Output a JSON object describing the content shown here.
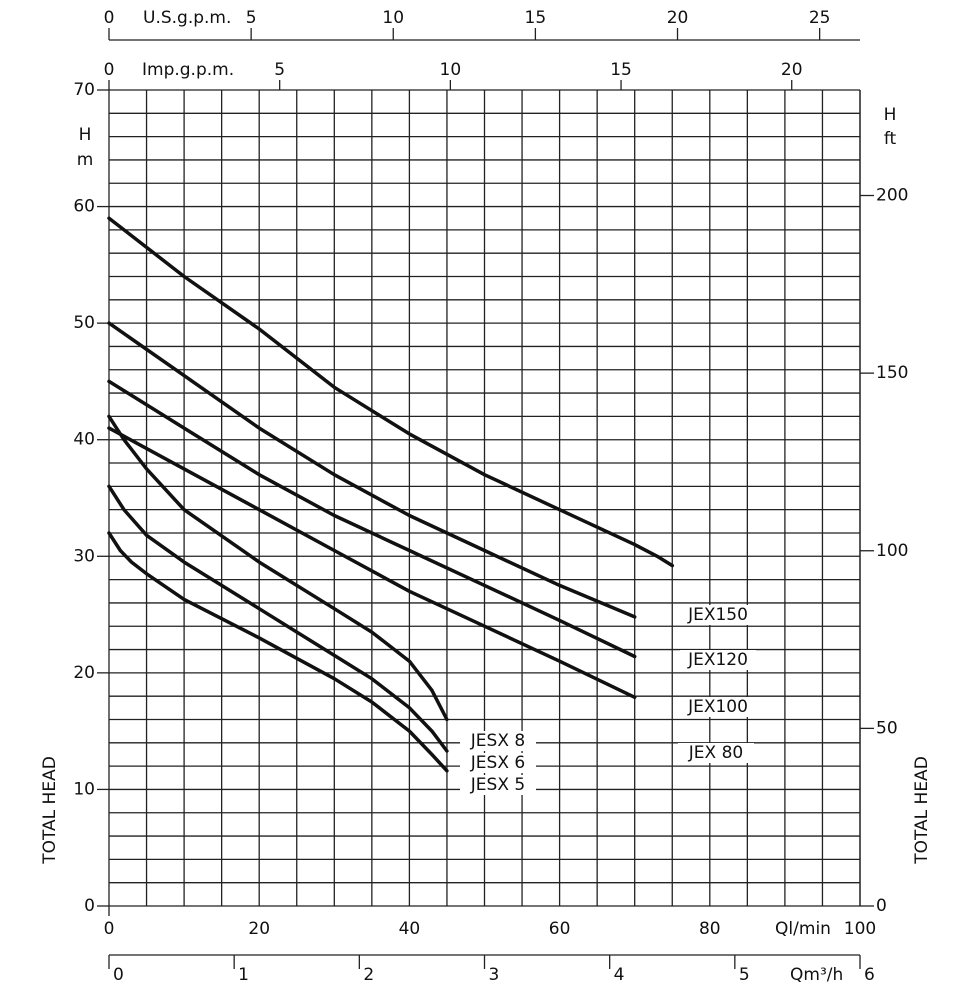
{
  "chart_data": {
    "type": "line",
    "xlabel": "Ql/min",
    "xlim": [
      0,
      100
    ],
    "xticks": [
      0,
      20,
      40,
      60,
      80,
      100
    ],
    "xgrid": [
      5,
      10,
      15,
      20,
      25,
      30,
      35,
      40,
      45,
      50,
      55,
      60,
      65,
      70,
      75,
      80,
      85,
      90,
      95,
      100
    ],
    "ylabel": "TOTAL HEAD",
    "yunit": [
      "H",
      "m"
    ],
    "ylim": [
      0,
      70
    ],
    "yticks": [
      0,
      10,
      20,
      30,
      40,
      50,
      60,
      70
    ],
    "ygrid": [
      2,
      4,
      6,
      8,
      10,
      12,
      14,
      16,
      18,
      20,
      22,
      24,
      26,
      28,
      30,
      32,
      34,
      36,
      38,
      40,
      42,
      44,
      46,
      48,
      50,
      52,
      54,
      56,
      58,
      60,
      62,
      64,
      66,
      68,
      70
    ],
    "y2label": "TOTAL HEAD",
    "y2unit": [
      "H",
      "ft"
    ],
    "y2lim": [
      0,
      229.7
    ],
    "y2ticks": [
      0,
      50,
      100,
      150,
      200
    ],
    "x_axes": [
      {
        "label": "U.S.g.p.m.",
        "lim": [
          0,
          26.42
        ],
        "ticks": [
          0,
          5,
          10,
          15,
          20,
          25
        ]
      },
      {
        "label": "Imp.g.p.m.",
        "lim": [
          0,
          22
        ],
        "ticks": [
          0,
          5,
          10,
          15,
          20
        ]
      },
      {
        "label": "Qm³/h",
        "lim": [
          0,
          6
        ],
        "ticks": [
          0,
          1,
          2,
          3,
          4,
          5,
          6
        ]
      }
    ],
    "series": [
      {
        "name": "JEX150",
        "color": "#111111",
        "x": [
          0,
          10,
          20,
          30,
          40,
          50,
          60,
          70,
          73,
          75
        ],
        "values": [
          59,
          54,
          49.5,
          44.5,
          40.5,
          37,
          34,
          31,
          30,
          29.2
        ]
      },
      {
        "name": "JEX120",
        "color": "#111111",
        "x": [
          0,
          10,
          20,
          30,
          40,
          50,
          60,
          70
        ],
        "values": [
          50,
          45.5,
          41,
          37,
          33.5,
          30.5,
          27.5,
          24.8
        ]
      },
      {
        "name": "JEX100",
        "color": "#111111",
        "x": [
          0,
          10,
          20,
          30,
          40,
          50,
          60,
          70
        ],
        "values": [
          45,
          41,
          37,
          33.5,
          30.5,
          27.5,
          24.5,
          21.4
        ]
      },
      {
        "name": "JEX 80",
        "color": "#111111",
        "x": [
          0,
          10,
          20,
          30,
          40,
          50,
          60,
          70
        ],
        "values": [
          41,
          37.5,
          34,
          30.5,
          27,
          24,
          21,
          17.9
        ]
      },
      {
        "name": "JESX 8",
        "color": "#111111",
        "x": [
          0,
          2,
          5,
          10,
          20,
          30,
          35,
          40,
          43,
          45
        ],
        "values": [
          42,
          40,
          37.5,
          34,
          29.5,
          25.5,
          23.5,
          21,
          18.5,
          16
        ]
      },
      {
        "name": "JESX 6",
        "color": "#111111",
        "x": [
          0,
          2,
          5,
          10,
          20,
          30,
          35,
          40,
          43,
          45
        ],
        "values": [
          36,
          34,
          31.8,
          29.5,
          25.5,
          21.5,
          19.5,
          17,
          15,
          13.3
        ]
      },
      {
        "name": "JESX 5",
        "color": "#111111",
        "x": [
          0,
          1.5,
          3,
          5,
          10,
          20,
          30,
          35,
          40,
          43,
          45
        ],
        "values": [
          32,
          30.5,
          29.5,
          28.5,
          26.3,
          23,
          19.5,
          17.5,
          15,
          13,
          11.6
        ]
      }
    ]
  }
}
